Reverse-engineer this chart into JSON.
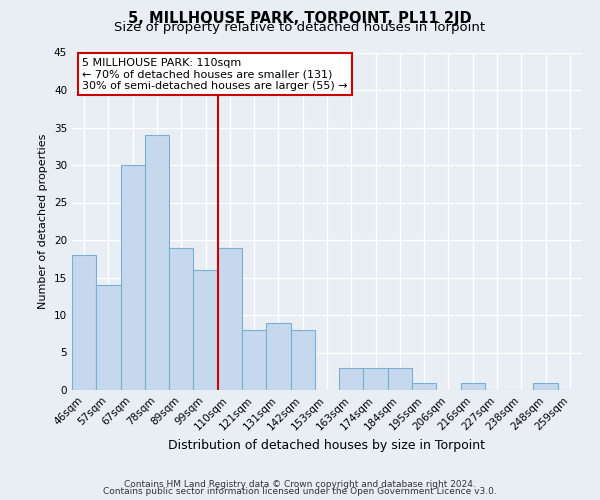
{
  "title": "5, MILLHOUSE PARK, TORPOINT, PL11 2JD",
  "subtitle": "Size of property relative to detached houses in Torpoint",
  "xlabel": "Distribution of detached houses by size in Torpoint",
  "ylabel": "Number of detached properties",
  "bin_labels": [
    "46sqm",
    "57sqm",
    "67sqm",
    "78sqm",
    "89sqm",
    "99sqm",
    "110sqm",
    "121sqm",
    "131sqm",
    "142sqm",
    "153sqm",
    "163sqm",
    "174sqm",
    "184sqm",
    "195sqm",
    "206sqm",
    "216sqm",
    "227sqm",
    "238sqm",
    "248sqm",
    "259sqm"
  ],
  "bar_heights": [
    18,
    14,
    30,
    34,
    19,
    16,
    19,
    8,
    9,
    8,
    0,
    3,
    3,
    3,
    1,
    0,
    1,
    0,
    0,
    1,
    0
  ],
  "bar_color": "#c5d8ed",
  "bar_edge_color": "#7bafd4",
  "ylim": [
    0,
    45
  ],
  "yticks": [
    0,
    5,
    10,
    15,
    20,
    25,
    30,
    35,
    40,
    45
  ],
  "vline_color": "#cc0000",
  "vline_index": 6,
  "annotation_title": "5 MILLHOUSE PARK: 110sqm",
  "annotation_line1": "← 70% of detached houses are smaller (131)",
  "annotation_line2": "30% of semi-detached houses are larger (55) →",
  "annotation_box_facecolor": "#ffffff",
  "annotation_box_edgecolor": "#cc0000",
  "footer1": "Contains HM Land Registry data © Crown copyright and database right 2024.",
  "footer2": "Contains public sector information licensed under the Open Government Licence v3.0.",
  "background_color": "#e8eef4",
  "grid_color": "#ffffff",
  "title_fontsize": 10.5,
  "subtitle_fontsize": 9.5,
  "ylabel_fontsize": 8,
  "xlabel_fontsize": 9,
  "tick_fontsize": 7.5,
  "footer_fontsize": 6.5
}
